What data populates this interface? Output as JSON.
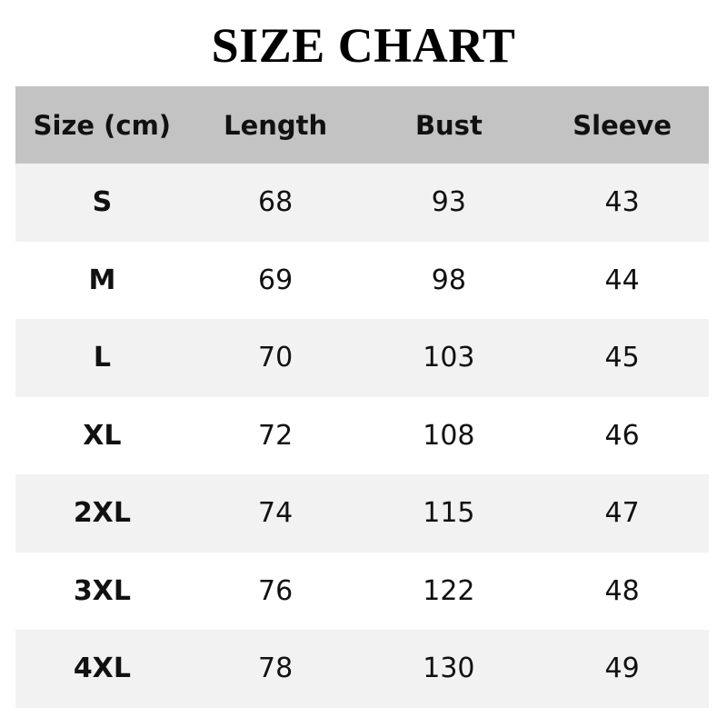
{
  "title": "SIZE CHART",
  "colors": {
    "header_bg": "#c3c3c3",
    "row_alt_bg": "#f2f2f2",
    "row_bg": "#ffffff"
  },
  "chart_data": {
    "type": "table",
    "title": "SIZE CHART",
    "columns": [
      "Size (cm)",
      "Length",
      "Bust",
      "Sleeve"
    ],
    "rows": [
      [
        "S",
        "68",
        "93",
        "43"
      ],
      [
        "M",
        "69",
        "98",
        "44"
      ],
      [
        "L",
        "70",
        "103",
        "45"
      ],
      [
        "XL",
        "72",
        "108",
        "46"
      ],
      [
        "2XL",
        "74",
        "115",
        "47"
      ],
      [
        "3XL",
        "76",
        "122",
        "48"
      ],
      [
        "4XL",
        "78",
        "130",
        "49"
      ]
    ]
  }
}
